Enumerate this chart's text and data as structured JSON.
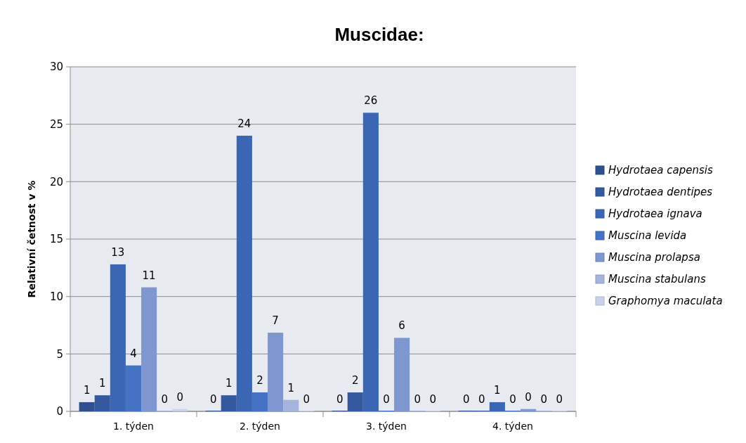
{
  "chart_data": {
    "type": "bar",
    "title": "Muscidae:",
    "ylabel": "Relativní četnost v %",
    "categories": [
      "1. týden",
      "2. týden",
      "3. týden",
      "4. týden"
    ],
    "series": [
      {
        "name": "Hydrotaea capensis",
        "color": "#2f4f8e",
        "values": [
          0.8,
          0,
          0,
          0
        ],
        "value_labels": [
          "1",
          "0",
          "0",
          "0"
        ]
      },
      {
        "name": "Hydrotaea dentipes",
        "color": "#35599f",
        "values": [
          1.4,
          1.4,
          1.65,
          0
        ],
        "value_labels": [
          "1",
          "1",
          "2",
          "0"
        ]
      },
      {
        "name": "Hydrotaea ignava",
        "color": "#3b66b3",
        "values": [
          12.8,
          24,
          26,
          0.8
        ],
        "value_labels": [
          "13",
          "24",
          "26",
          "1"
        ]
      },
      {
        "name": "Muscina levida",
        "color": "#4472c4",
        "values": [
          4,
          1.65,
          0,
          0
        ],
        "value_labels": [
          "4",
          "2",
          "0",
          "0"
        ]
      },
      {
        "name": "Muscina prolapsa",
        "color": "#7f97d0",
        "values": [
          10.8,
          6.85,
          6.4,
          0.2
        ],
        "value_labels": [
          "11",
          "7",
          "6",
          "0"
        ]
      },
      {
        "name": "Muscina stabulans",
        "color": "#a5b4db",
        "values": [
          0,
          1,
          0,
          0
        ],
        "value_labels": [
          "0",
          "1",
          "0",
          "0"
        ]
      },
      {
        "name": "Graphomya maculata",
        "color": "#c9d2ea",
        "values": [
          0.2,
          0,
          0,
          0
        ],
        "value_labels": [
          "0",
          "0",
          "0",
          "0"
        ]
      }
    ],
    "ylim": [
      0,
      30
    ],
    "yticks": [
      0,
      5,
      10,
      15,
      20,
      25,
      30
    ],
    "grid": "y",
    "legend": "right"
  }
}
